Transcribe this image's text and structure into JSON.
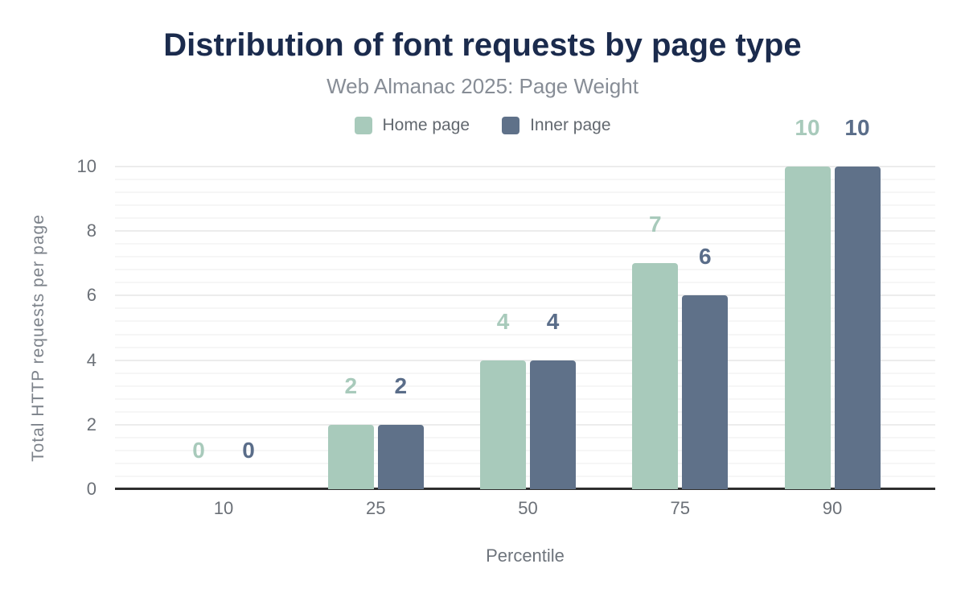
{
  "chart_data": {
    "type": "bar",
    "title": "Distribution of font requests by page type",
    "subtitle": "Web Almanac 2025: Page Weight",
    "xlabel": "Percentile",
    "ylabel": "Total HTTP requests per page",
    "categories": [
      "10",
      "25",
      "50",
      "75",
      "90"
    ],
    "series": [
      {
        "name": "Home page",
        "color": "#a8cabb",
        "label_color": "#a8cabb",
        "values": [
          0,
          2,
          4,
          7,
          10
        ]
      },
      {
        "name": "Inner page",
        "color": "#5f7189",
        "label_color": "#5a6d89",
        "values": [
          0,
          2,
          4,
          6,
          10
        ]
      }
    ],
    "ylim": [
      0,
      10
    ],
    "yticks": [
      0,
      2,
      4,
      6,
      8,
      10
    ],
    "minor_grid_step": 0.4,
    "grid": true,
    "legend_position": "top",
    "data_labels": true,
    "colors": {
      "background": "#ffffff",
      "title_text": "#1b2b4d",
      "subtitle_text": "#878d96",
      "legend_text": "#62686f",
      "axis_text": "#6b7077",
      "axis_title_text": "#7c828a",
      "axis_line": "#2e2e2e",
      "major_gridline": "#ececec",
      "minor_gridline": "#f6f6f6"
    }
  }
}
